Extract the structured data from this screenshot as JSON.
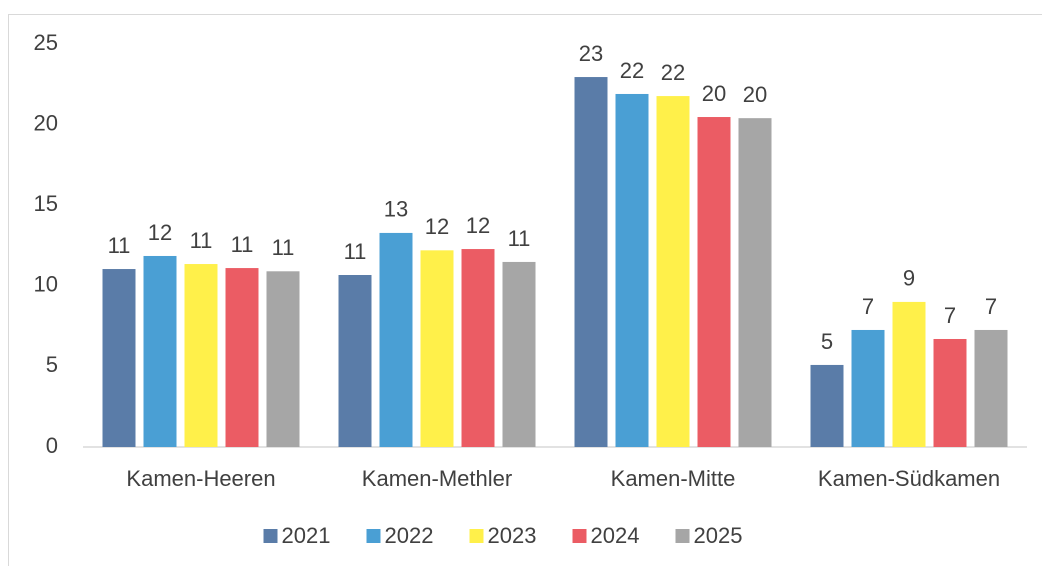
{
  "chart_data": {
    "type": "bar",
    "categories": [
      "Kamen-Heeren",
      "Kamen-Methler",
      "Kamen-Mitte",
      "Kamen-Südkamen"
    ],
    "series": [
      {
        "name": "2021",
        "color": "#5a7ca8",
        "values": [
          11.04,
          10.67,
          22.95,
          5.09
        ],
        "value_labels": [
          "11",
          "11",
          "23",
          "5"
        ]
      },
      {
        "name": "2022",
        "color": "#4a9fd4",
        "values": [
          11.85,
          13.28,
          21.9,
          7.26
        ],
        "value_labels": [
          "12",
          "13",
          "22",
          "7"
        ]
      },
      {
        "name": "2023",
        "color": "#fff04a",
        "values": [
          11.35,
          12.2,
          21.77,
          9.0
        ],
        "value_labels": [
          "11",
          "12",
          "22",
          "9"
        ]
      },
      {
        "name": "2024",
        "color": "#eb5c64",
        "values": [
          11.1,
          12.28,
          20.47,
          6.7
        ],
        "value_labels": [
          "11",
          "12",
          "20",
          "7"
        ]
      },
      {
        "name": "2025",
        "color": "#a6a6a6",
        "values": [
          10.9,
          11.48,
          20.4,
          7.26
        ],
        "value_labels": [
          "11",
          "11",
          "20",
          "7"
        ]
      }
    ],
    "ylim": [
      0,
      25
    ],
    "yticks": [
      0,
      5,
      10,
      15,
      20,
      25
    ],
    "grid": false,
    "legend": "bottom"
  }
}
